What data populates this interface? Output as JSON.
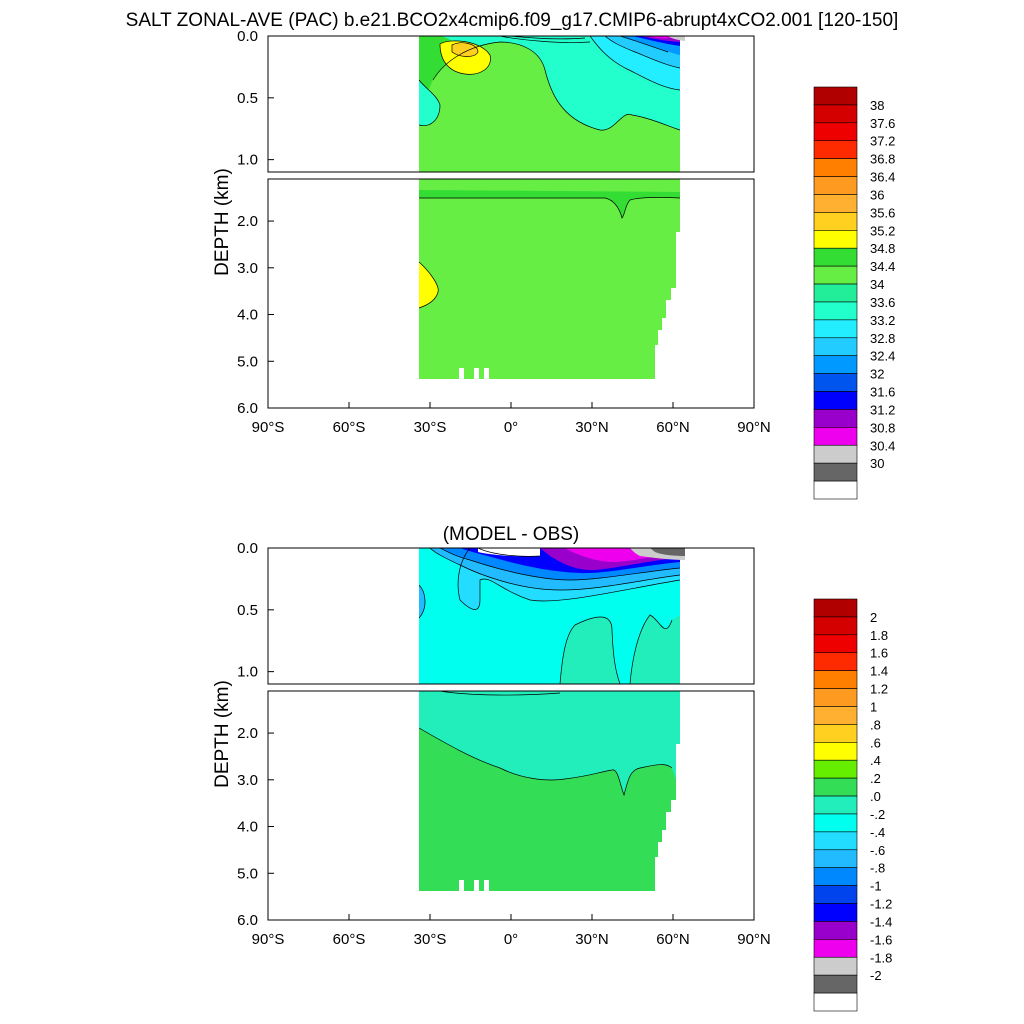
{
  "title": "SALT ZONAL-AVE (PAC) b.e21.BCO2x4cmip6.f09_g17.CMIP6-abrupt4xCO2.001 [120-150]",
  "chart_data": [
    {
      "type": "heatmap",
      "title": "",
      "ylabel": "DEPTH (km)",
      "xlim": [
        -90,
        90
      ],
      "ylim": [
        0,
        6
      ],
      "x_ticks": [
        "90°S",
        "60°S",
        "30°S",
        "0°",
        "30°N",
        "60°N",
        "90°N"
      ],
      "y_ticks_upper": [
        "0.0",
        "0.5",
        "1.0"
      ],
      "y_ticks_lower": [
        "2.0",
        "3.0",
        "4.0",
        "5.0",
        "6.0"
      ],
      "data_extent": {
        "lat": [
          -34,
          62
        ],
        "depth_km": [
          0,
          5.4
        ]
      },
      "colorbar_levels": [
        "38",
        "37.6",
        "37.2",
        "36.8",
        "36.4",
        "36",
        "35.6",
        "35.2",
        "34.8",
        "34.4",
        "34",
        "33.6",
        "33.2",
        "32.8",
        "32.4",
        "32",
        "31.6",
        "31.2",
        "30.8",
        "30.4",
        "30"
      ],
      "colorbar_colors": [
        "#b00000",
        "#d40000",
        "#ee0000",
        "#ff2b00",
        "#ff7f00",
        "#ff9a20",
        "#ffb030",
        "#ffd020",
        "#ffff00",
        "#33dd33",
        "#66ee44",
        "#22ee99",
        "#22ffcc",
        "#22eeff",
        "#22ccff",
        "#0099ff",
        "#0055ee",
        "#0000ff",
        "#9900cc",
        "#ee00ee",
        "#cccccc",
        "#666666",
        "#ffffff"
      ],
      "dominant_field": "34.4-34.8 (green) below 1 km; 33.2-34.0 near surface",
      "features": [
        {
          "label": "salinity max",
          "lat": -22,
          "depth_km": 0.1,
          "value_range": "34.8-35.6"
        },
        {
          "label": "deep salty patch",
          "lat": -32,
          "depth_km": 3.3,
          "value_range": "34.8-35.2"
        },
        {
          "label": "fresh surface north",
          "lat": 55,
          "depth_km": 0.05,
          "value_range": "30.8-31.6"
        }
      ]
    },
    {
      "type": "heatmap",
      "title": "(MODEL - OBS)",
      "ylabel": "DEPTH (km)",
      "xlim": [
        -90,
        90
      ],
      "ylim": [
        0,
        6
      ],
      "x_ticks": [
        "90°S",
        "60°S",
        "30°S",
        "0°",
        "30°N",
        "60°N",
        "90°N"
      ],
      "y_ticks_upper": [
        "0.0",
        "0.5",
        "1.0"
      ],
      "y_ticks_lower": [
        "2.0",
        "3.0",
        "4.0",
        "5.0",
        "6.0"
      ],
      "data_extent": {
        "lat": [
          -34,
          62
        ],
        "depth_km": [
          0,
          5.4
        ]
      },
      "colorbar_levels": [
        "2",
        "1.8",
        "1.6",
        "1.4",
        "1.2",
        "1",
        ".8",
        ".6",
        ".4",
        ".2",
        ".0",
        "-.2",
        "-.4",
        "-.6",
        "-.8",
        "-1",
        "-1.2",
        "-1.4",
        "-1.6",
        "-1.8",
        "-2"
      ],
      "colorbar_colors": [
        "#b00000",
        "#d40000",
        "#ee0000",
        "#ff2b00",
        "#ff7f00",
        "#ff9a20",
        "#ffb030",
        "#ffd020",
        "#ffff00",
        "#66ee00",
        "#33dd55",
        "#22eebb",
        "#00ffee",
        "#22ddff",
        "#22bbff",
        "#0088ff",
        "#0044ee",
        "#0000ff",
        "#9900cc",
        "#ee00ee",
        "#cccccc",
        "#666666",
        "#ffffff"
      ],
      "dominant_field": "-0.4 to -0.2 upper 1 km; -0.2 to 0.0 below; 0.0 to 0.2 deep",
      "features": [
        {
          "label": "strong surface freshening",
          "lat": 20,
          "depth_km": 0.05,
          "value_range": "-2 to -1.2"
        },
        {
          "label": "deep positive bias",
          "lat": 10,
          "depth_km": 4.2,
          "value_range": "0.0-0.2"
        }
      ]
    }
  ]
}
